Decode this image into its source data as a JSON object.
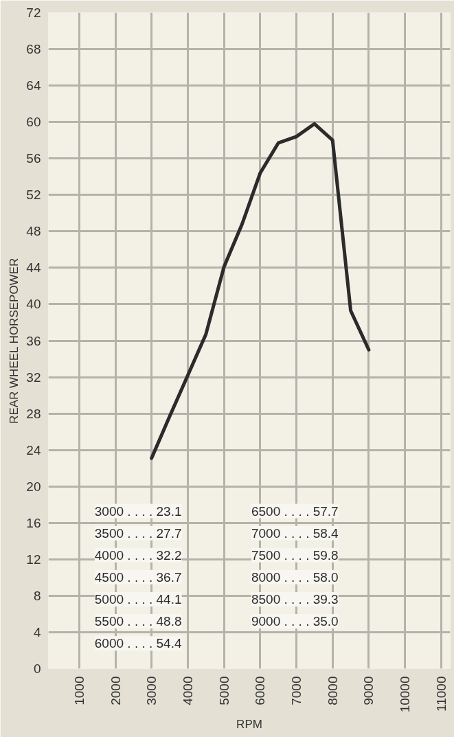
{
  "chart_data": {
    "type": "line",
    "xlabel": "RPM",
    "ylabel": "REAR WHEEL HORSEPOWER",
    "x": [
      3000,
      3500,
      4000,
      4500,
      5000,
      5500,
      6000,
      6500,
      7000,
      7500,
      8000,
      8500,
      9000
    ],
    "series": [
      {
        "color": "#2b2b2b",
        "values": [
          23.1,
          27.7,
          32.2,
          36.7,
          44.1,
          48.8,
          54.4,
          57.7,
          58.4,
          59.8,
          58.0,
          39.3,
          35.0
        ]
      }
    ],
    "xlim": [
      150,
      11250
    ],
    "xticks": [
      1000,
      2000,
      3000,
      4000,
      5000,
      6000,
      7000,
      8000,
      9000,
      10000,
      11000
    ],
    "ylim": [
      0,
      72
    ],
    "yticks": [
      0,
      4,
      8,
      12,
      16,
      20,
      24,
      28,
      32,
      36,
      40,
      44,
      48,
      52,
      56,
      60,
      64,
      68,
      72
    ],
    "grid": true,
    "marker": "none",
    "line_style": "solid",
    "annotations": [
      "3000 . . . . 23.1",
      "3500 . . . . 27.7",
      "4000 . . . . 32.2",
      "4500 . . . . 36.7",
      "5000 . . . . 44.1",
      "5500 . . . . 48.8",
      "6000 . . . . 54.4",
      "6500 . . . . 57.7",
      "7000 . . . . 58.4",
      "7500 . . . . 59.8",
      "8000 . . . . 58.0",
      "8500 . . . . 39.3",
      "9000 . . . . 35.0"
    ]
  }
}
